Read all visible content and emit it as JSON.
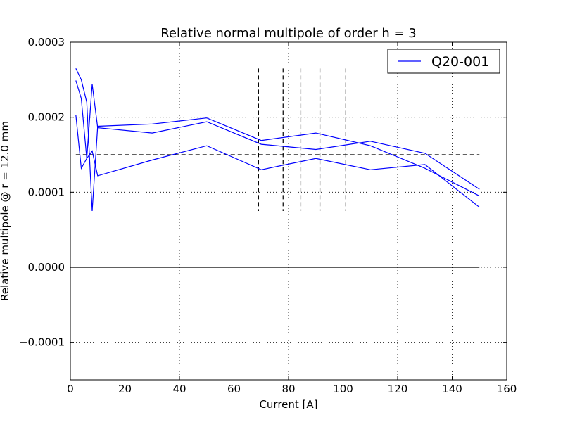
{
  "chart_data": {
    "type": "line",
    "title": "Relative normal multipole of order h = 3",
    "xlabel": "Current [A]",
    "ylabel": "Relative multipole @ r = 12.0 mm",
    "xlim": [
      0,
      160
    ],
    "ylim": [
      -0.00015,
      0.0003
    ],
    "x_ticks": [
      0,
      20,
      40,
      60,
      80,
      100,
      120,
      140,
      160
    ],
    "x_tick_labels": [
      "0",
      "20",
      "40",
      "60",
      "80",
      "100",
      "120",
      "140",
      "160"
    ],
    "y_ticks": [
      -0.0001,
      0.0,
      0.0001,
      0.0002,
      0.0003
    ],
    "y_tick_labels": [
      "−0.0001",
      "0.0000",
      "0.0001",
      "0.0002",
      "0.0003"
    ],
    "grid": true,
    "legend_position": "top-right",
    "series": [
      {
        "name": "Q20-001",
        "color": "#0000ff",
        "x": [
          2,
          4,
          6,
          8,
          10,
          30,
          50,
          70,
          90,
          110,
          130,
          150
        ],
        "y": [
          0.000265,
          0.00025,
          0.00022,
          7.5e-05,
          0.000188,
          0.000191,
          0.000199,
          0.000169,
          0.000179,
          0.000162,
          0.000132,
          9.5e-05
        ]
      },
      {
        "name": "",
        "color": "#0000ff",
        "x": [
          2,
          4,
          6,
          8,
          10,
          30,
          50,
          70,
          90,
          110,
          130,
          150
        ],
        "y": [
          0.000249,
          0.000225,
          0.000145,
          0.000244,
          0.000186,
          0.000179,
          0.000194,
          0.000164,
          0.000157,
          0.000168,
          0.000152,
          0.000104
        ]
      },
      {
        "name": "",
        "color": "#0000ff",
        "x": [
          2,
          4,
          6,
          8,
          10,
          30,
          50,
          70,
          90,
          110,
          130,
          150
        ],
        "y": [
          0.000203,
          0.000132,
          0.000145,
          0.000155,
          0.000122,
          0.000143,
          0.000162,
          0.00013,
          0.000145,
          0.00013,
          0.000137,
          8e-05
        ]
      }
    ],
    "reference_lines": {
      "horizontal": [
        {
          "y": 0.00015,
          "x_range": [
            2,
            150
          ],
          "color": "#000000",
          "style": "dashed"
        },
        {
          "y": 0.0,
          "x_range": [
            0,
            150
          ],
          "color": "#000000",
          "style": "solid"
        }
      ],
      "vertical": [
        {
          "x": 69,
          "y_range": [
            7.5e-05,
            0.000265
          ],
          "color": "#000000",
          "style": "dashed"
        },
        {
          "x": 78,
          "y_range": [
            7.5e-05,
            0.000265
          ],
          "color": "#000000",
          "style": "dashed"
        },
        {
          "x": 84.5,
          "y_range": [
            7.5e-05,
            0.000265
          ],
          "color": "#000000",
          "style": "dashed"
        },
        {
          "x": 91.5,
          "y_range": [
            7.5e-05,
            0.000265
          ],
          "color": "#000000",
          "style": "dashed"
        },
        {
          "x": 101,
          "y_range": [
            7.5e-05,
            0.000265
          ],
          "color": "#000000",
          "style": "dashed"
        }
      ]
    }
  }
}
